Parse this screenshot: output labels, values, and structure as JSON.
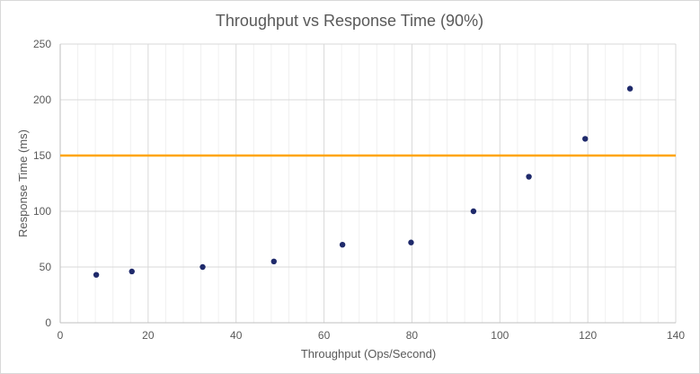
{
  "chart_data": {
    "type": "scatter",
    "title": "Throughput vs Response Time (90%)",
    "xlabel": "Throughput  (Ops/Second)",
    "ylabel": "Response Time (ms)",
    "xlim": [
      0,
      140
    ],
    "ylim": [
      0,
      250
    ],
    "xticks": [
      0,
      20,
      40,
      60,
      80,
      100,
      120,
      140
    ],
    "yticks": [
      0,
      50,
      100,
      150,
      200,
      250
    ],
    "x_minor_step": 4,
    "y_major_step": 50,
    "grid": true,
    "legend": "none",
    "series": [
      {
        "color": "#1f2a6b",
        "points": [
          {
            "x": 8.2,
            "y": 43
          },
          {
            "x": 16.3,
            "y": 46
          },
          {
            "x": 32.4,
            "y": 50
          },
          {
            "x": 48.6,
            "y": 55
          },
          {
            "x": 64.2,
            "y": 70
          },
          {
            "x": 79.8,
            "y": 72
          },
          {
            "x": 94.0,
            "y": 100
          },
          {
            "x": 106.6,
            "y": 131
          },
          {
            "x": 119.4,
            "y": 165
          },
          {
            "x": 129.6,
            "y": 210
          }
        ]
      }
    ],
    "reference_lines": [
      {
        "orientation": "horizontal",
        "y": 150,
        "color": "#ffa500"
      }
    ]
  }
}
